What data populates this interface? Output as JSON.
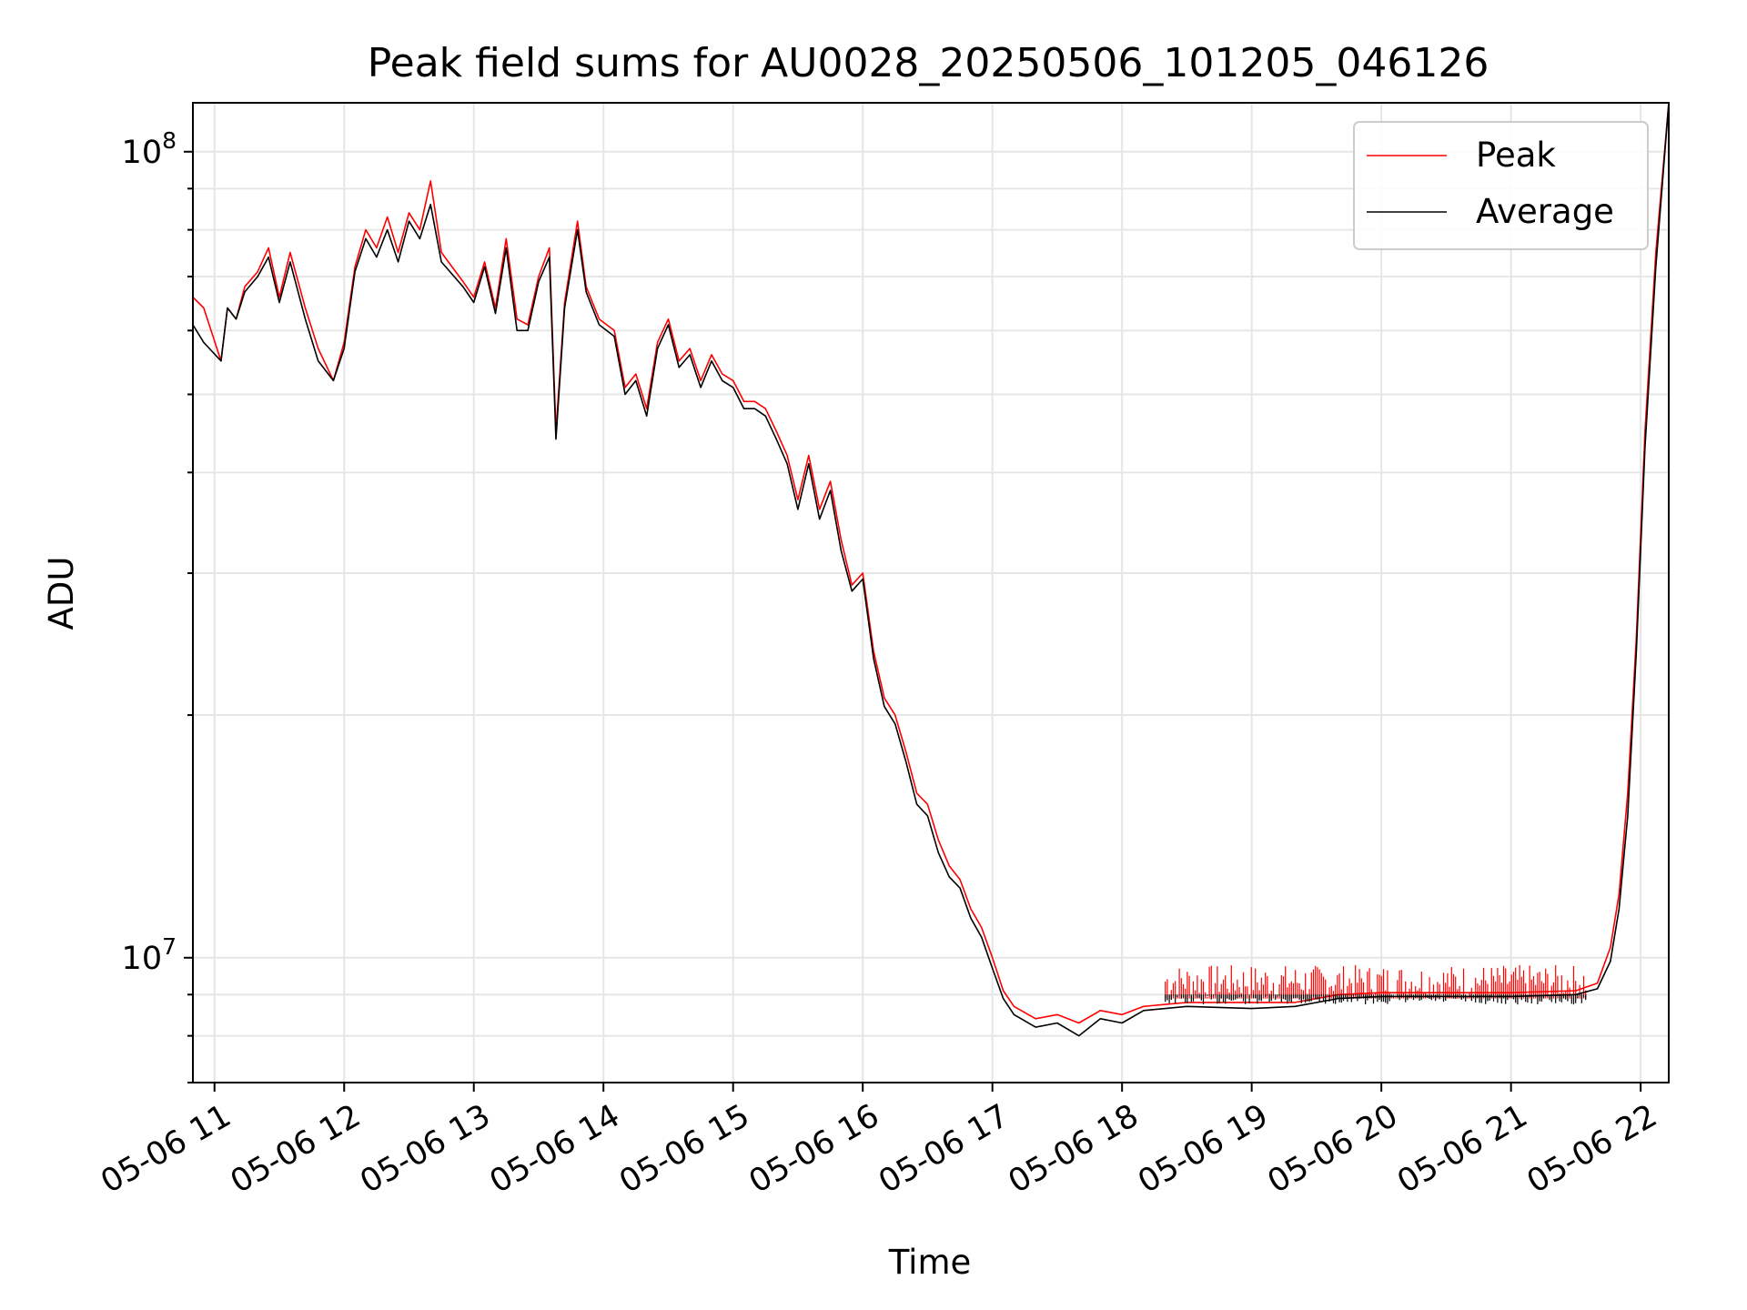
{
  "chart_data": {
    "type": "line",
    "title": "Peak field sums for AU0028_20250506_101205_046126",
    "xlabel": "Time",
    "ylabel": "ADU",
    "x_ticks": [
      "05-06 11",
      "05-06 12",
      "05-06 13",
      "05-06 14",
      "05-06 15",
      "05-06 16",
      "05-06 17",
      "05-06 18",
      "05-06 19",
      "05-06 20",
      "05-06 21",
      "05-06 22"
    ],
    "y_ticks": [
      {
        "value": 10000000,
        "base": "10",
        "exp": "7"
      },
      {
        "value": 100000000,
        "base": "10",
        "exp": "8"
      }
    ],
    "xlim": [
      "2025-05-06T10:50",
      "2025-05-06T22:13"
    ],
    "ylim": [
      7000000,
      115000000
    ],
    "y_scale": "log",
    "grid": true,
    "legend": "top-right",
    "series": [
      {
        "name": "Peak",
        "color": "#ff0000",
        "noise_band": {
          "start": "2025-05-06T18:20",
          "end": "2025-05-06T21:35",
          "max": 9800000
        },
        "points": [
          [
            "2025-05-06T10:50",
            66000000
          ],
          [
            "2025-05-06T10:55",
            64000000
          ],
          [
            "2025-05-06T11:03",
            55000000
          ],
          [
            "2025-05-06T11:06",
            64000000
          ],
          [
            "2025-05-06T11:10",
            62000000
          ],
          [
            "2025-05-06T11:14",
            68000000
          ],
          [
            "2025-05-06T11:20",
            71000000
          ],
          [
            "2025-05-06T11:25",
            76000000
          ],
          [
            "2025-05-06T11:30",
            66000000
          ],
          [
            "2025-05-06T11:35",
            75000000
          ],
          [
            "2025-05-06T11:42",
            64000000
          ],
          [
            "2025-05-06T11:48",
            57000000
          ],
          [
            "2025-05-06T11:55",
            52000000
          ],
          [
            "2025-05-06T12:00",
            58000000
          ],
          [
            "2025-05-06T12:05",
            72000000
          ],
          [
            "2025-05-06T12:10",
            80000000
          ],
          [
            "2025-05-06T12:15",
            76000000
          ],
          [
            "2025-05-06T12:20",
            83000000
          ],
          [
            "2025-05-06T12:25",
            75000000
          ],
          [
            "2025-05-06T12:30",
            84000000
          ],
          [
            "2025-05-06T12:35",
            80000000
          ],
          [
            "2025-05-06T12:40",
            92000000
          ],
          [
            "2025-05-06T12:45",
            75000000
          ],
          [
            "2025-05-06T12:55",
            69000000
          ],
          [
            "2025-05-06T13:00",
            66000000
          ],
          [
            "2025-05-06T13:05",
            73000000
          ],
          [
            "2025-05-06T13:10",
            64000000
          ],
          [
            "2025-05-06T13:15",
            78000000
          ],
          [
            "2025-05-06T13:20",
            62000000
          ],
          [
            "2025-05-06T13:25",
            61000000
          ],
          [
            "2025-05-06T13:30",
            70000000
          ],
          [
            "2025-05-06T13:35",
            76000000
          ],
          [
            "2025-05-06T13:38",
            45000000
          ],
          [
            "2025-05-06T13:42",
            65000000
          ],
          [
            "2025-05-06T13:48",
            82000000
          ],
          [
            "2025-05-06T13:52",
            68000000
          ],
          [
            "2025-05-06T13:58",
            62000000
          ],
          [
            "2025-05-06T14:05",
            60000000
          ],
          [
            "2025-05-06T14:10",
            51000000
          ],
          [
            "2025-05-06T14:15",
            53000000
          ],
          [
            "2025-05-06T14:20",
            48000000
          ],
          [
            "2025-05-06T14:25",
            58000000
          ],
          [
            "2025-05-06T14:30",
            62000000
          ],
          [
            "2025-05-06T14:35",
            55000000
          ],
          [
            "2025-05-06T14:40",
            57000000
          ],
          [
            "2025-05-06T14:45",
            52000000
          ],
          [
            "2025-05-06T14:50",
            56000000
          ],
          [
            "2025-05-06T14:55",
            53000000
          ],
          [
            "2025-05-06T15:00",
            52000000
          ],
          [
            "2025-05-06T15:05",
            49000000
          ],
          [
            "2025-05-06T15:10",
            49000000
          ],
          [
            "2025-05-06T15:15",
            48000000
          ],
          [
            "2025-05-06T15:20",
            45000000
          ],
          [
            "2025-05-06T15:25",
            42000000
          ],
          [
            "2025-05-06T15:30",
            37000000
          ],
          [
            "2025-05-06T15:35",
            42000000
          ],
          [
            "2025-05-06T15:40",
            36000000
          ],
          [
            "2025-05-06T15:45",
            39000000
          ],
          [
            "2025-05-06T15:50",
            33000000
          ],
          [
            "2025-05-06T15:55",
            29000000
          ],
          [
            "2025-05-06T16:00",
            30000000
          ],
          [
            "2025-05-06T16:05",
            24000000
          ],
          [
            "2025-05-06T16:10",
            21000000
          ],
          [
            "2025-05-06T16:15",
            20000000
          ],
          [
            "2025-05-06T16:20",
            18000000
          ],
          [
            "2025-05-06T16:25",
            16000000
          ],
          [
            "2025-05-06T16:30",
            15500000
          ],
          [
            "2025-05-06T16:35",
            14000000
          ],
          [
            "2025-05-06T16:40",
            13000000
          ],
          [
            "2025-05-06T16:45",
            12500000
          ],
          [
            "2025-05-06T16:50",
            11500000
          ],
          [
            "2025-05-06T16:55",
            10900000
          ],
          [
            "2025-05-06T17:00",
            10000000
          ],
          [
            "2025-05-06T17:05",
            9100000
          ],
          [
            "2025-05-06T17:10",
            8700000
          ],
          [
            "2025-05-06T17:20",
            8400000
          ],
          [
            "2025-05-06T17:30",
            8500000
          ],
          [
            "2025-05-06T17:40",
            8300000
          ],
          [
            "2025-05-06T17:50",
            8600000
          ],
          [
            "2025-05-06T18:00",
            8500000
          ],
          [
            "2025-05-06T18:10",
            8700000
          ],
          [
            "2025-05-06T18:30",
            8800000
          ],
          [
            "2025-05-06T19:00",
            8800000
          ],
          [
            "2025-05-06T19:20",
            8800000
          ],
          [
            "2025-05-06T19:40",
            9000000
          ],
          [
            "2025-05-06T20:00",
            9050000
          ],
          [
            "2025-05-06T20:30",
            9050000
          ],
          [
            "2025-05-06T21:00",
            9050000
          ],
          [
            "2025-05-06T21:30",
            9100000
          ],
          [
            "2025-05-06T21:40",
            9300000
          ],
          [
            "2025-05-06T21:46",
            10300000
          ],
          [
            "2025-05-06T21:50",
            12000000
          ],
          [
            "2025-05-06T21:54",
            16000000
          ],
          [
            "2025-05-06T21:58",
            25000000
          ],
          [
            "2025-05-06T22:02",
            45000000
          ],
          [
            "2025-05-06T22:07",
            75000000
          ],
          [
            "2025-05-06T22:13",
            115000000
          ]
        ]
      },
      {
        "name": "Average",
        "color": "#000000",
        "noise_band": {
          "start": "2025-05-06T18:20",
          "end": "2025-05-06T21:35",
          "min": 8750000
        },
        "points": [
          [
            "2025-05-06T10:50",
            61000000
          ],
          [
            "2025-05-06T10:55",
            58000000
          ],
          [
            "2025-05-06T11:03",
            55000000
          ],
          [
            "2025-05-06T11:06",
            64000000
          ],
          [
            "2025-05-06T11:10",
            62000000
          ],
          [
            "2025-05-06T11:14",
            67000000
          ],
          [
            "2025-05-06T11:20",
            70000000
          ],
          [
            "2025-05-06T11:25",
            74000000
          ],
          [
            "2025-05-06T11:30",
            65000000
          ],
          [
            "2025-05-06T11:35",
            73000000
          ],
          [
            "2025-05-06T11:42",
            62000000
          ],
          [
            "2025-05-06T11:48",
            55000000
          ],
          [
            "2025-05-06T11:55",
            52000000
          ],
          [
            "2025-05-06T12:00",
            57000000
          ],
          [
            "2025-05-06T12:05",
            71000000
          ],
          [
            "2025-05-06T12:10",
            78000000
          ],
          [
            "2025-05-06T12:15",
            74000000
          ],
          [
            "2025-05-06T12:20",
            80000000
          ],
          [
            "2025-05-06T12:25",
            73000000
          ],
          [
            "2025-05-06T12:30",
            82000000
          ],
          [
            "2025-05-06T12:35",
            78000000
          ],
          [
            "2025-05-06T12:40",
            86000000
          ],
          [
            "2025-05-06T12:45",
            73000000
          ],
          [
            "2025-05-06T12:55",
            68000000
          ],
          [
            "2025-05-06T13:00",
            65000000
          ],
          [
            "2025-05-06T13:05",
            72000000
          ],
          [
            "2025-05-06T13:10",
            63000000
          ],
          [
            "2025-05-06T13:15",
            76000000
          ],
          [
            "2025-05-06T13:20",
            60000000
          ],
          [
            "2025-05-06T13:25",
            60000000
          ],
          [
            "2025-05-06T13:30",
            69000000
          ],
          [
            "2025-05-06T13:35",
            74000000
          ],
          [
            "2025-05-06T13:38",
            44000000
          ],
          [
            "2025-05-06T13:42",
            64000000
          ],
          [
            "2025-05-06T13:48",
            80000000
          ],
          [
            "2025-05-06T13:52",
            67000000
          ],
          [
            "2025-05-06T13:58",
            61000000
          ],
          [
            "2025-05-06T14:05",
            59000000
          ],
          [
            "2025-05-06T14:10",
            50000000
          ],
          [
            "2025-05-06T14:15",
            52000000
          ],
          [
            "2025-05-06T14:20",
            47000000
          ],
          [
            "2025-05-06T14:25",
            57000000
          ],
          [
            "2025-05-06T14:30",
            61000000
          ],
          [
            "2025-05-06T14:35",
            54000000
          ],
          [
            "2025-05-06T14:40",
            56000000
          ],
          [
            "2025-05-06T14:45",
            51000000
          ],
          [
            "2025-05-06T14:50",
            55000000
          ],
          [
            "2025-05-06T14:55",
            52000000
          ],
          [
            "2025-05-06T15:00",
            51000000
          ],
          [
            "2025-05-06T15:05",
            48000000
          ],
          [
            "2025-05-06T15:10",
            48000000
          ],
          [
            "2025-05-06T15:15",
            47000000
          ],
          [
            "2025-05-06T15:20",
            44000000
          ],
          [
            "2025-05-06T15:25",
            41000000
          ],
          [
            "2025-05-06T15:30",
            36000000
          ],
          [
            "2025-05-06T15:35",
            41000000
          ],
          [
            "2025-05-06T15:40",
            35000000
          ],
          [
            "2025-05-06T15:45",
            38000000
          ],
          [
            "2025-05-06T15:50",
            32000000
          ],
          [
            "2025-05-06T15:55",
            28500000
          ],
          [
            "2025-05-06T16:00",
            29500000
          ],
          [
            "2025-05-06T16:05",
            23500000
          ],
          [
            "2025-05-06T16:10",
            20500000
          ],
          [
            "2025-05-06T16:15",
            19500000
          ],
          [
            "2025-05-06T16:20",
            17500000
          ],
          [
            "2025-05-06T16:25",
            15500000
          ],
          [
            "2025-05-06T16:30",
            15000000
          ],
          [
            "2025-05-06T16:35",
            13500000
          ],
          [
            "2025-05-06T16:40",
            12600000
          ],
          [
            "2025-05-06T16:45",
            12200000
          ],
          [
            "2025-05-06T16:50",
            11200000
          ],
          [
            "2025-05-06T16:55",
            10600000
          ],
          [
            "2025-05-06T17:00",
            9700000
          ],
          [
            "2025-05-06T17:05",
            8900000
          ],
          [
            "2025-05-06T17:10",
            8500000
          ],
          [
            "2025-05-06T17:20",
            8200000
          ],
          [
            "2025-05-06T17:30",
            8300000
          ],
          [
            "2025-05-06T17:40",
            8000000
          ],
          [
            "2025-05-06T17:50",
            8400000
          ],
          [
            "2025-05-06T18:00",
            8300000
          ],
          [
            "2025-05-06T18:10",
            8600000
          ],
          [
            "2025-05-06T18:30",
            8700000
          ],
          [
            "2025-05-06T19:00",
            8650000
          ],
          [
            "2025-05-06T19:20",
            8700000
          ],
          [
            "2025-05-06T19:40",
            8900000
          ],
          [
            "2025-05-06T20:00",
            8950000
          ],
          [
            "2025-05-06T20:30",
            8950000
          ],
          [
            "2025-05-06T21:00",
            8950000
          ],
          [
            "2025-05-06T21:30",
            9000000
          ],
          [
            "2025-05-06T21:40",
            9150000
          ],
          [
            "2025-05-06T21:46",
            9900000
          ],
          [
            "2025-05-06T21:50",
            11500000
          ],
          [
            "2025-05-06T21:54",
            15000000
          ],
          [
            "2025-05-06T21:58",
            24000000
          ],
          [
            "2025-05-06T22:02",
            43000000
          ],
          [
            "2025-05-06T22:07",
            72000000
          ],
          [
            "2025-05-06T22:13",
            115000000
          ]
        ]
      }
    ]
  }
}
